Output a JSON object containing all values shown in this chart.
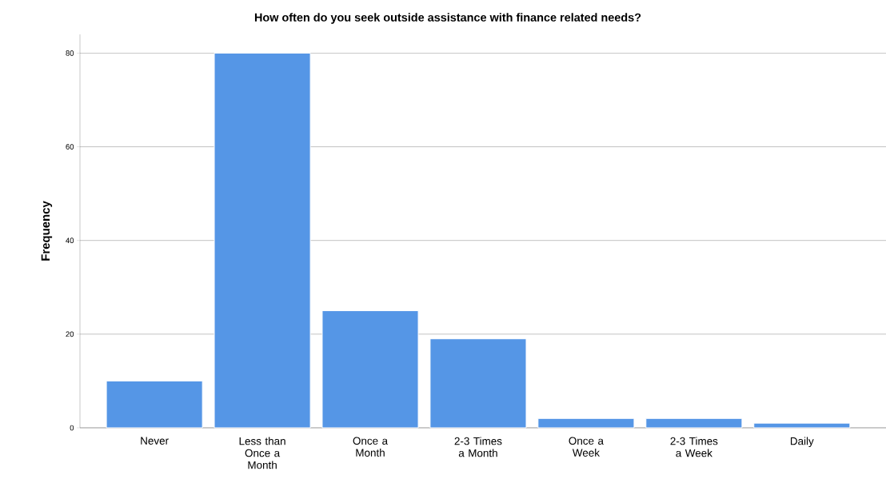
{
  "chart_data": {
    "type": "bar",
    "title": "How often do you seek outside assistance with finance related needs?",
    "ylabel": "Frequency",
    "categories": [
      "Never",
      "Less than Once a Month",
      "Once a Month",
      "2-3 Times a Month",
      "Once a Week",
      "2-3 Times a Week",
      "Daily"
    ],
    "values": [
      10,
      80,
      25,
      19,
      2,
      2,
      1
    ],
    "color": "#5596e6",
    "ylim": [
      0,
      84
    ],
    "yticks": [
      0,
      20,
      40,
      60,
      80
    ],
    "grid": "y"
  }
}
